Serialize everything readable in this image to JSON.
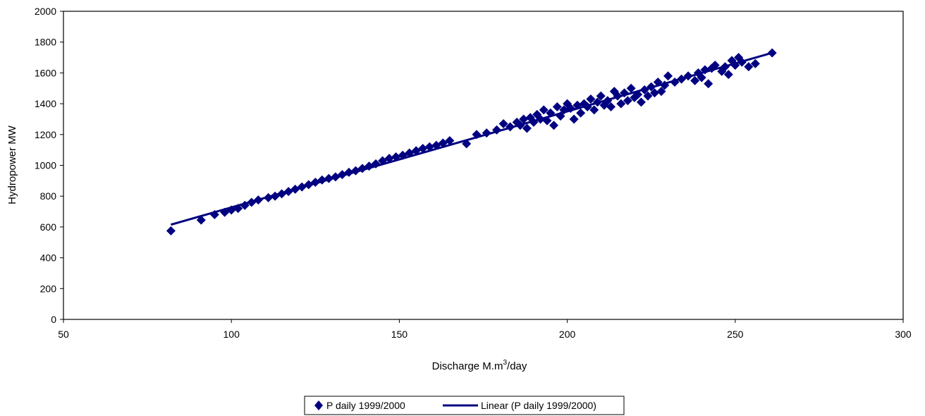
{
  "chart_data": {
    "type": "scatter",
    "xlabel": "Discharge M.m",
    "xlabel_sup": "3",
    "xlabel_suffix": "/day",
    "ylabel": "Hydropower MW",
    "xlim": [
      50,
      300
    ],
    "ylim": [
      0,
      2000
    ],
    "xticks": [
      50,
      100,
      150,
      200,
      250,
      300
    ],
    "yticks": [
      0,
      200,
      400,
      600,
      800,
      1000,
      1200,
      1400,
      1600,
      1800,
      2000
    ],
    "grid": false,
    "legend_position": "bottom-center",
    "colors": {
      "series": "#000080",
      "axis": "#000000"
    },
    "series": [
      {
        "name": "P daily 1999/2000",
        "kind": "scatter",
        "marker": "diamond",
        "x": [
          82,
          91,
          95,
          98,
          100,
          102,
          104,
          106,
          108,
          111,
          113,
          115,
          117,
          119,
          121,
          123,
          125,
          127,
          129,
          131,
          133,
          135,
          137,
          139,
          141,
          143,
          145,
          147,
          149,
          151,
          153,
          155,
          157,
          159,
          161,
          163,
          165,
          170,
          173,
          176,
          179,
          181,
          183,
          185,
          186,
          187,
          188,
          189,
          190,
          191,
          192,
          193,
          194,
          195,
          196,
          197,
          198,
          199,
          200,
          201,
          202,
          203,
          204,
          205,
          206,
          207,
          208,
          209,
          210,
          211,
          212,
          213,
          214,
          215,
          216,
          217,
          218,
          219,
          220,
          221,
          222,
          223,
          224,
          225,
          226,
          227,
          228,
          229,
          230,
          232,
          234,
          236,
          238,
          239,
          240,
          241,
          242,
          243,
          244,
          246,
          247,
          248,
          249,
          250,
          251,
          252,
          254,
          256,
          261
        ],
        "y": [
          575,
          645,
          680,
          695,
          710,
          720,
          740,
          760,
          775,
          790,
          800,
          815,
          830,
          845,
          860,
          875,
          890,
          905,
          915,
          925,
          940,
          955,
          965,
          980,
          995,
          1010,
          1030,
          1045,
          1055,
          1065,
          1080,
          1095,
          1110,
          1120,
          1130,
          1145,
          1160,
          1140,
          1200,
          1210,
          1230,
          1270,
          1250,
          1280,
          1260,
          1300,
          1240,
          1310,
          1280,
          1330,
          1300,
          1360,
          1290,
          1340,
          1260,
          1380,
          1320,
          1360,
          1400,
          1370,
          1300,
          1390,
          1340,
          1400,
          1380,
          1430,
          1360,
          1410,
          1450,
          1390,
          1420,
          1380,
          1480,
          1450,
          1400,
          1470,
          1420,
          1500,
          1440,
          1460,
          1410,
          1490,
          1450,
          1510,
          1470,
          1540,
          1480,
          1520,
          1580,
          1540,
          1560,
          1580,
          1550,
          1600,
          1570,
          1620,
          1530,
          1630,
          1650,
          1610,
          1640,
          1590,
          1680,
          1650,
          1700,
          1670,
          1640,
          1660,
          1730
        ]
      },
      {
        "name": "Linear (P daily 1999/2000)",
        "kind": "line",
        "x": [
          82,
          261
        ],
        "y": [
          615,
          1730
        ]
      }
    ]
  }
}
